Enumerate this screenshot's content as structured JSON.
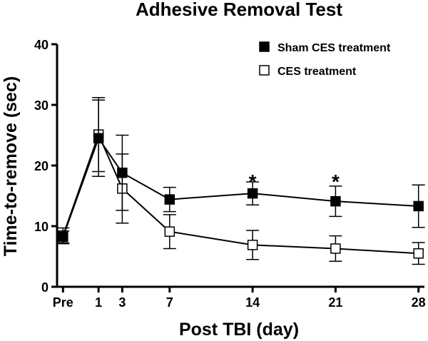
{
  "chart_data": {
    "type": "line",
    "title": "Adhesive Removal Test",
    "xlabel": "Post TBI (day)",
    "ylabel": "Time-to-remove (sec)",
    "ylim": [
      0,
      40
    ],
    "yticks": [
      "0",
      "10",
      "20",
      "30",
      "40"
    ],
    "xlim": [
      -2.5,
      28.5
    ],
    "categories": [
      "Pre",
      "1",
      "3",
      "7",
      "14",
      "21",
      "28"
    ],
    "x": [
      -2,
      1,
      3,
      7,
      14,
      21,
      28
    ],
    "series": [
      {
        "name": "Sham CES treatment",
        "marker": "filled-square",
        "values": [
          8.2,
          24.5,
          18.8,
          14.4,
          15.4,
          14.1,
          13.3
        ],
        "error": [
          1.0,
          6.3,
          6.2,
          2.0,
          1.9,
          2.5,
          3.5
        ]
      },
      {
        "name": "CES treatment",
        "marker": "open-square",
        "values": [
          8.4,
          25.1,
          16.2,
          9.1,
          6.9,
          6.3,
          5.5
        ],
        "error": [
          1.3,
          6.1,
          5.7,
          2.8,
          2.4,
          2.1,
          1.8
        ]
      }
    ],
    "annotations": [
      {
        "x": 14,
        "text": "*"
      },
      {
        "x": 21,
        "text": "*"
      }
    ],
    "legend": "top-right"
  }
}
